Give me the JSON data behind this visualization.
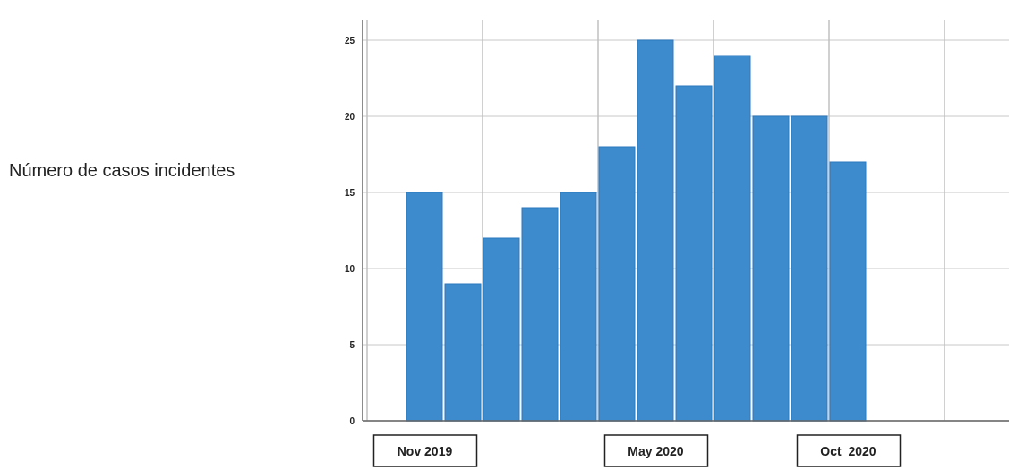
{
  "chart_data": {
    "type": "bar",
    "annotations": [
      "Número de casos incidentes"
    ],
    "categories": [
      "Nov 2019",
      null,
      null,
      null,
      null,
      null,
      "May 2020",
      null,
      null,
      null,
      null,
      "Oct  2020"
    ],
    "values": [
      15,
      9,
      12,
      14,
      15,
      18,
      25,
      22,
      24,
      20,
      20,
      17
    ],
    "color": "#3d8bcc",
    "ylim": [
      0,
      25
    ],
    "yticks": [
      0,
      5,
      10,
      15,
      20,
      25
    ],
    "grid": true
  }
}
